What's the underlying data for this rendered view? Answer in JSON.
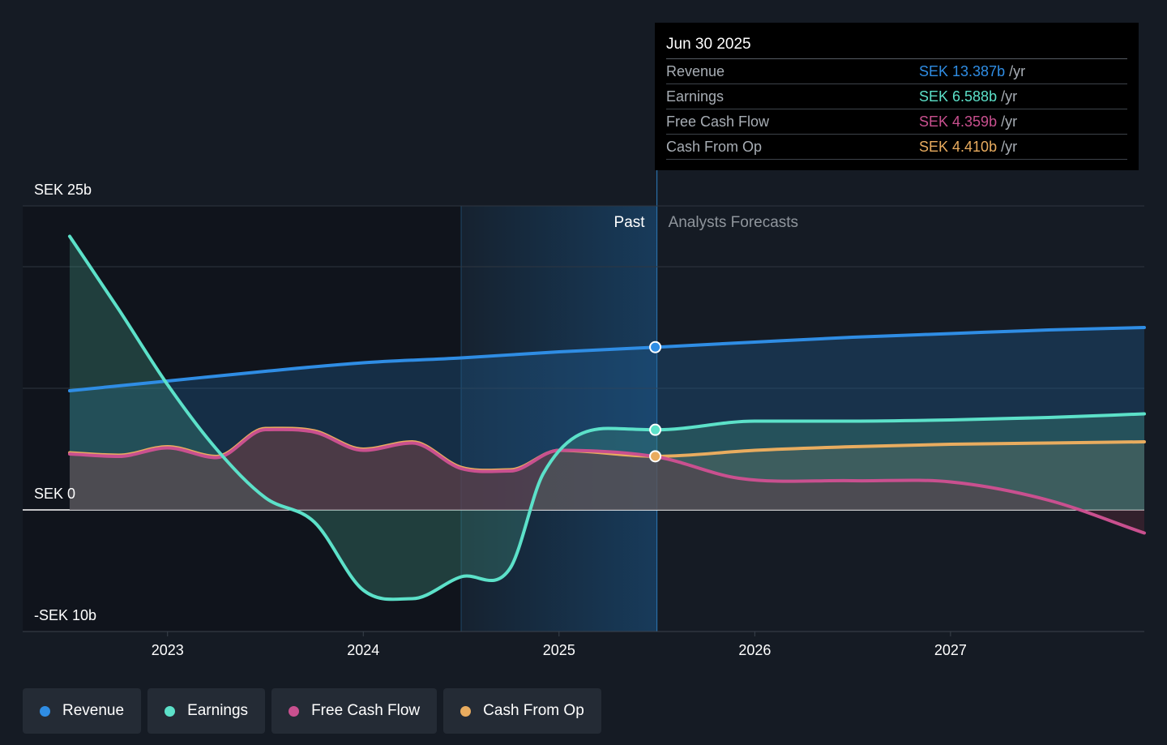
{
  "chart_data": {
    "type": "line",
    "x_unit": "year",
    "y_unit": "SEK b",
    "ylim": [
      -10,
      25
    ],
    "y_tick_labels": [
      {
        "value": 25,
        "label": "SEK 25b"
      },
      {
        "value": 0,
        "label": "SEK 0"
      },
      {
        "value": -10,
        "label": "-SEK 10b"
      }
    ],
    "y_gridlines": [
      25,
      20,
      10,
      0
    ],
    "x_ticks": [
      {
        "value": 2023,
        "label": "2023"
      },
      {
        "value": 2024,
        "label": "2024"
      },
      {
        "value": 2025,
        "label": "2025"
      },
      {
        "value": 2026,
        "label": "2026"
      },
      {
        "value": 2027,
        "label": "2027"
      }
    ],
    "xlim": [
      2022.26,
      2027.99
    ],
    "past_label": "Past",
    "forecast_label": "Analysts Forecasts",
    "past_end": 2025.5,
    "highlight_start": 2024.5,
    "series": [
      {
        "name": "Revenue",
        "color": "#2f8de4",
        "points": [
          [
            2022.5,
            9.8
          ],
          [
            2023.0,
            10.6
          ],
          [
            2023.5,
            11.4
          ],
          [
            2024.0,
            12.1
          ],
          [
            2024.5,
            12.5
          ],
          [
            2025.0,
            13.0
          ],
          [
            2025.5,
            13.387
          ],
          [
            2026.0,
            13.8
          ],
          [
            2026.5,
            14.2
          ],
          [
            2027.0,
            14.5
          ],
          [
            2027.5,
            14.8
          ],
          [
            2027.99,
            15.0
          ]
        ]
      },
      {
        "name": "Earnings",
        "color": "#5ce1c9",
        "points": [
          [
            2022.5,
            22.5
          ],
          [
            2022.75,
            16.5
          ],
          [
            2023.0,
            10.3
          ],
          [
            2023.25,
            5.0
          ],
          [
            2023.5,
            1.0
          ],
          [
            2023.75,
            -1.0
          ],
          [
            2024.0,
            -6.6
          ],
          [
            2024.25,
            -7.3
          ],
          [
            2024.5,
            -5.5
          ],
          [
            2024.75,
            -4.8
          ],
          [
            2024.92,
            3.0
          ],
          [
            2025.25,
            6.7
          ],
          [
            2025.5,
            6.588
          ],
          [
            2026.0,
            7.3
          ],
          [
            2026.5,
            7.3
          ],
          [
            2027.0,
            7.4
          ],
          [
            2027.5,
            7.6
          ],
          [
            2027.99,
            7.9
          ]
        ]
      },
      {
        "name": "Free Cash Flow",
        "color": "#c9508f",
        "points": [
          [
            2022.5,
            4.6
          ],
          [
            2022.75,
            4.4
          ],
          [
            2023.0,
            5.1
          ],
          [
            2023.25,
            4.3
          ],
          [
            2023.5,
            6.6
          ],
          [
            2023.75,
            6.4
          ],
          [
            2024.0,
            4.9
          ],
          [
            2024.25,
            5.5
          ],
          [
            2024.5,
            3.4
          ],
          [
            2024.75,
            3.2
          ],
          [
            2025.0,
            4.9
          ],
          [
            2025.5,
            4.359
          ],
          [
            2025.92,
            2.6
          ],
          [
            2026.5,
            2.4
          ],
          [
            2027.0,
            2.3
          ],
          [
            2027.5,
            0.8
          ],
          [
            2027.99,
            -1.9
          ]
        ]
      },
      {
        "name": "Cash From Op",
        "color": "#e9ac5f",
        "points": [
          [
            2022.5,
            4.7
          ],
          [
            2022.75,
            4.5
          ],
          [
            2023.0,
            5.2
          ],
          [
            2023.25,
            4.4
          ],
          [
            2023.5,
            6.7
          ],
          [
            2023.75,
            6.5
          ],
          [
            2024.0,
            5.0
          ],
          [
            2024.25,
            5.6
          ],
          [
            2024.5,
            3.5
          ],
          [
            2024.75,
            3.3
          ],
          [
            2025.0,
            4.9
          ],
          [
            2025.5,
            4.41
          ],
          [
            2026.0,
            4.9
          ],
          [
            2026.5,
            5.2
          ],
          [
            2027.0,
            5.4
          ],
          [
            2027.5,
            5.5
          ],
          [
            2027.99,
            5.6
          ]
        ]
      }
    ]
  },
  "tooltip": {
    "date": "Jun 30 2025",
    "unit": "/yr",
    "rows": [
      {
        "label": "Revenue",
        "value": "SEK 13.387b",
        "color": "#2f8de4"
      },
      {
        "label": "Earnings",
        "value": "SEK 6.588b",
        "color": "#5ce1c9"
      },
      {
        "label": "Free Cash Flow",
        "value": "SEK 4.359b",
        "color": "#c9508f"
      },
      {
        "label": "Cash From Op",
        "value": "SEK 4.410b",
        "color": "#e9ac5f"
      }
    ]
  },
  "legend": [
    {
      "label": "Revenue",
      "color": "#2f8de4",
      "icon": "circle-dot-icon"
    },
    {
      "label": "Earnings",
      "color": "#5ce1c9",
      "icon": "circle-dot-icon"
    },
    {
      "label": "Free Cash Flow",
      "color": "#c9508f",
      "icon": "circle-dot-icon"
    },
    {
      "label": "Cash From Op",
      "color": "#e9ac5f",
      "icon": "circle-dot-icon"
    }
  ]
}
